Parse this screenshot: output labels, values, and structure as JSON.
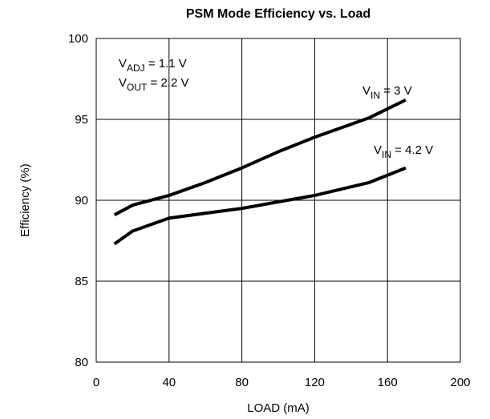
{
  "chart_data": {
    "type": "line",
    "title": "PSM Mode Efficiency vs. Load",
    "x_label": "LOAD (mA)",
    "y_label": "Efficiency (%)",
    "xlim": [
      0,
      200
    ],
    "xticks": [
      0,
      40,
      80,
      120,
      160,
      200
    ],
    "ylim": [
      80,
      100
    ],
    "yticks": [
      80,
      85,
      90,
      95,
      100
    ],
    "grid": true,
    "series": [
      {
        "color": "#000000",
        "x": [
          10,
          20,
          40,
          60,
          80,
          100,
          120,
          150,
          170
        ],
        "values": [
          89.1,
          89.7,
          90.3,
          91.1,
          92.0,
          93.0,
          93.9,
          95.1,
          96.2
        ]
      },
      {
        "color": "#000000",
        "x": [
          10,
          20,
          40,
          60,
          80,
          100,
          120,
          150,
          170
        ],
        "values": [
          87.3,
          88.1,
          88.9,
          89.2,
          89.5,
          89.9,
          90.3,
          91.1,
          92.0
        ]
      }
    ],
    "annotations": [
      {
        "text": "V",
        "sub": "ADJ",
        "suffix": " = 1.1 V"
      },
      {
        "text": "V",
        "sub": "OUT",
        "suffix": " = 2.2 V"
      },
      {
        "text": "V",
        "sub": "IN",
        "suffix": " = 3 V"
      },
      {
        "text": "V",
        "sub": "IN",
        "suffix": " = 4.2 V"
      }
    ]
  }
}
